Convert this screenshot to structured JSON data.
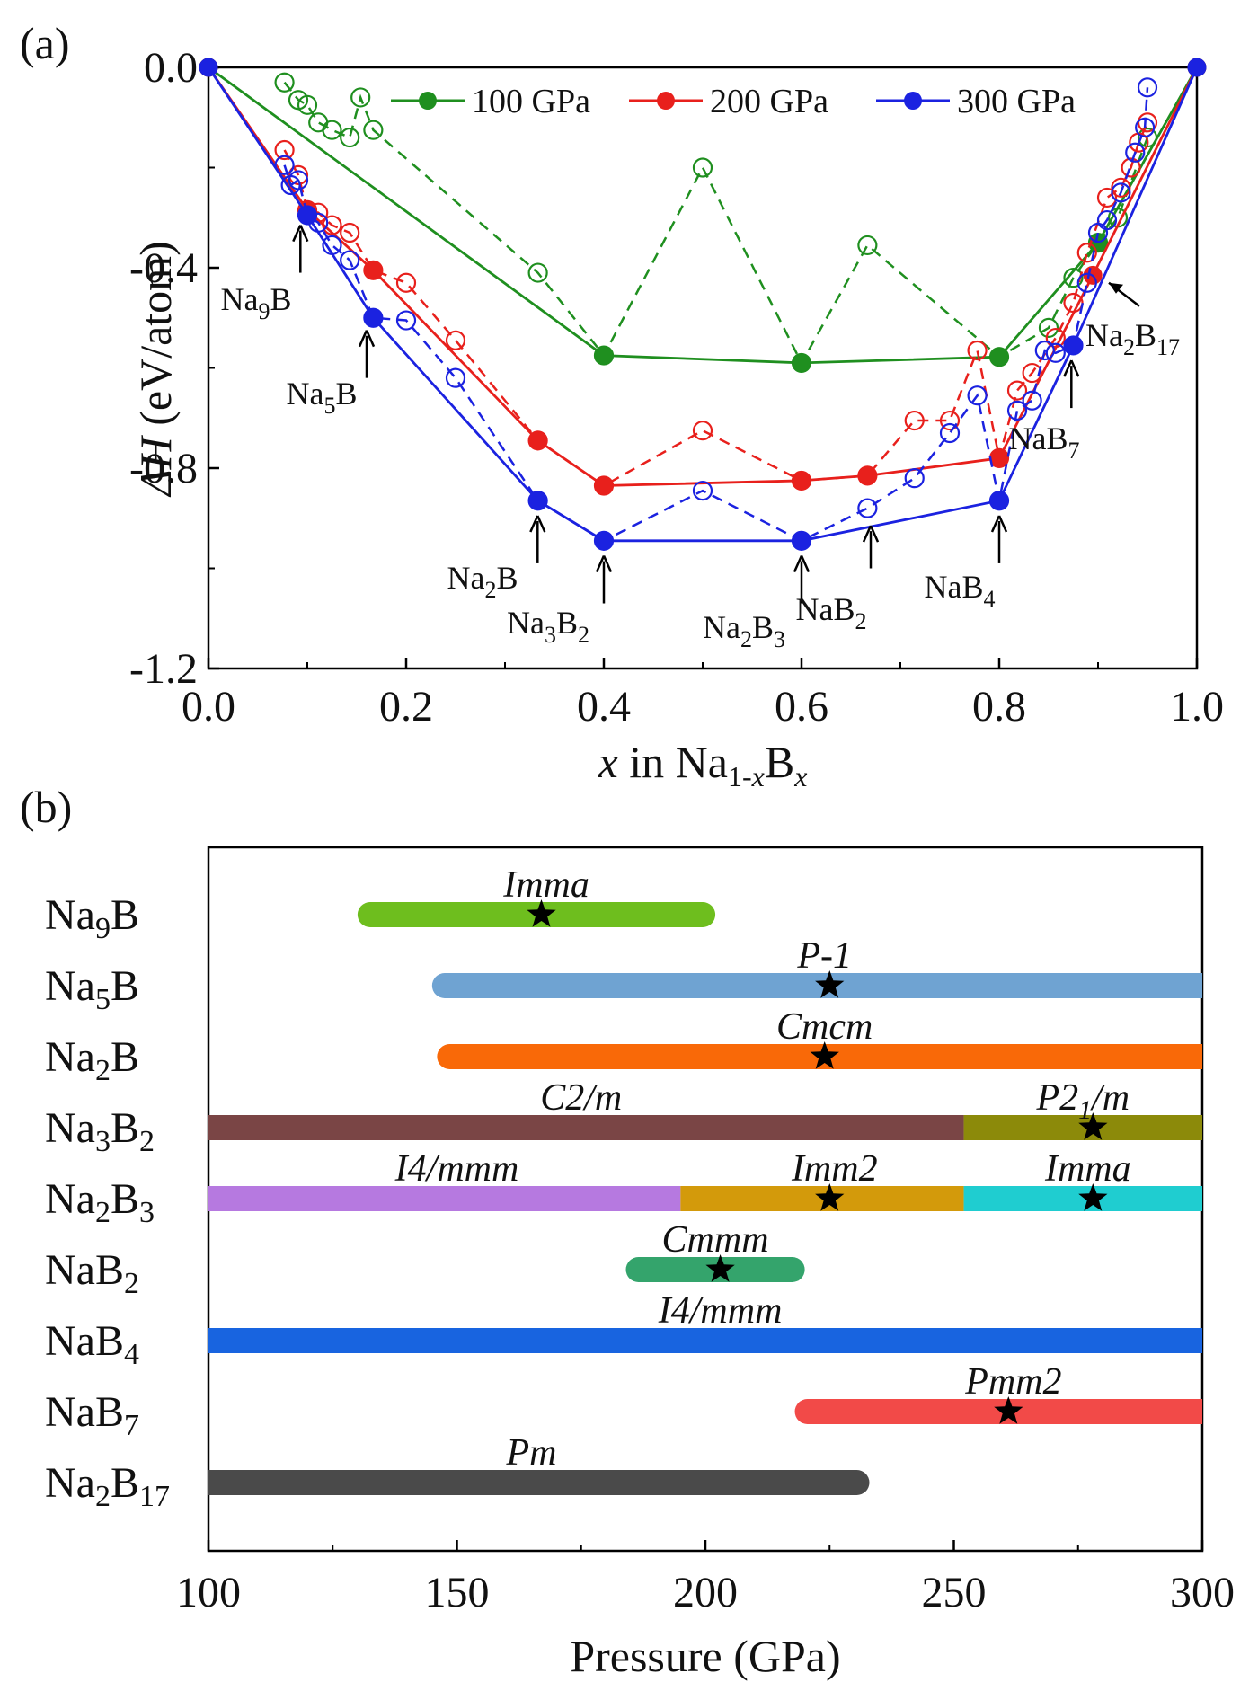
{
  "panel_a": {
    "label": "(a)",
    "chart_data": {
      "type": "line",
      "xlabel": "x in Na1-xBx",
      "ylabel": "ΔH (eV/atom)",
      "xlim": [
        0,
        1
      ],
      "ylim": [
        -1.2,
        0
      ],
      "xticks": [
        "0.0",
        "0.2",
        "0.4",
        "0.6",
        "0.8",
        "1.0"
      ],
      "yticks": [
        "0.0",
        "-0.4",
        "-0.8",
        "-1.2"
      ],
      "legend_position": "top",
      "series": [
        {
          "name": "100 GPa",
          "color": "#1f8f1f",
          "hull": [
            [
              0,
              0
            ],
            [
              0.4,
              -0.575
            ],
            [
              0.6,
              -0.59
            ],
            [
              0.8,
              -0.578
            ],
            [
              0.9,
              -0.35
            ],
            [
              1.0,
              0
            ]
          ],
          "metastable": [
            [
              0.0769,
              -0.03
            ],
            [
              0.0909,
              -0.065
            ],
            [
              0.1,
              -0.075
            ],
            [
              0.1111,
              -0.11
            ],
            [
              0.125,
              -0.125
            ],
            [
              0.1429,
              -0.14
            ],
            [
              0.1538,
              -0.06
            ],
            [
              0.1667,
              -0.125
            ],
            [
              0.3333,
              -0.41
            ],
            [
              0.4,
              -0.575
            ],
            [
              0.5,
              -0.2
            ],
            [
              0.6,
              -0.59
            ],
            [
              0.6667,
              -0.355
            ],
            [
              0.8,
              -0.578
            ],
            [
              0.85,
              -0.52
            ],
            [
              0.875,
              -0.42
            ],
            [
              0.9,
              -0.35
            ],
            [
              0.92,
              -0.3
            ],
            [
              0.95,
              -0.14
            ]
          ]
        },
        {
          "name": "200 GPa",
          "color": "#e8201c",
          "hull": [
            [
              0,
              0
            ],
            [
              0.1,
              -0.285
            ],
            [
              0.1667,
              -0.405
            ],
            [
              0.3333,
              -0.745
            ],
            [
              0.4,
              -0.835
            ],
            [
              0.6,
              -0.825
            ],
            [
              0.6667,
              -0.815
            ],
            [
              0.8,
              -0.78
            ],
            [
              0.8947,
              -0.415
            ],
            [
              1.0,
              0
            ]
          ],
          "metastable": [
            [
              0.0769,
              -0.165
            ],
            [
              0.0909,
              -0.215
            ],
            [
              0.1,
              -0.285
            ],
            [
              0.1111,
              -0.29
            ],
            [
              0.125,
              -0.315
            ],
            [
              0.1429,
              -0.33
            ],
            [
              0.1667,
              -0.405
            ],
            [
              0.2,
              -0.43
            ],
            [
              0.25,
              -0.545
            ],
            [
              0.3333,
              -0.745
            ],
            [
              0.4,
              -0.835
            ],
            [
              0.5,
              -0.725
            ],
            [
              0.6,
              -0.825
            ],
            [
              0.6667,
              -0.815
            ],
            [
              0.7143,
              -0.705
            ],
            [
              0.75,
              -0.705
            ],
            [
              0.7778,
              -0.565
            ],
            [
              0.8,
              -0.78
            ],
            [
              0.8182,
              -0.645
            ],
            [
              0.8333,
              -0.61
            ],
            [
              0.8571,
              -0.54
            ],
            [
              0.875,
              -0.47
            ],
            [
              0.8889,
              -0.37
            ],
            [
              0.9091,
              -0.26
            ],
            [
              0.9231,
              -0.24
            ],
            [
              0.9333,
              -0.2
            ],
            [
              0.9412,
              -0.15
            ],
            [
              0.95,
              -0.11
            ]
          ]
        },
        {
          "name": "300 GPa",
          "color": "#1b22e0",
          "hull": [
            [
              0,
              0
            ],
            [
              0.1,
              -0.295
            ],
            [
              0.1667,
              -0.5
            ],
            [
              0.3333,
              -0.865
            ],
            [
              0.4,
              -0.945
            ],
            [
              0.6,
              -0.945
            ],
            [
              0.8,
              -0.865
            ],
            [
              0.875,
              -0.555
            ],
            [
              1.0,
              0
            ]
          ],
          "metastable": [
            [
              0.0769,
              -0.195
            ],
            [
              0.0833,
              -0.235
            ],
            [
              0.0909,
              -0.225
            ],
            [
              0.1,
              -0.295
            ],
            [
              0.1111,
              -0.31
            ],
            [
              0.125,
              -0.355
            ],
            [
              0.1429,
              -0.385
            ],
            [
              0.1667,
              -0.5
            ],
            [
              0.2,
              -0.505
            ],
            [
              0.25,
              -0.62
            ],
            [
              0.3333,
              -0.865
            ],
            [
              0.4,
              -0.945
            ],
            [
              0.5,
              -0.845
            ],
            [
              0.6,
              -0.945
            ],
            [
              0.6667,
              -0.88
            ],
            [
              0.7143,
              -0.82
            ],
            [
              0.75,
              -0.73
            ],
            [
              0.7778,
              -0.655
            ],
            [
              0.8,
              -0.865
            ],
            [
              0.8182,
              -0.685
            ],
            [
              0.8333,
              -0.665
            ],
            [
              0.8462,
              -0.565
            ],
            [
              0.8571,
              -0.57
            ],
            [
              0.875,
              -0.555
            ],
            [
              0.8889,
              -0.43
            ],
            [
              0.9,
              -0.33
            ],
            [
              0.9091,
              -0.305
            ],
            [
              0.9231,
              -0.25
            ],
            [
              0.9375,
              -0.17
            ],
            [
              0.9474,
              -0.12
            ],
            [
              0.95,
              -0.04
            ]
          ]
        }
      ],
      "annotations": [
        {
          "label": "Na9B",
          "x": 0.1,
          "y": -0.285
        },
        {
          "label": "Na5B",
          "x": 0.1667,
          "y": -0.5
        },
        {
          "label": "Na2B",
          "x": 0.3333,
          "y": -0.865
        },
        {
          "label": "Na3B2",
          "x": 0.4,
          "y": -0.945
        },
        {
          "label": "Na2B3",
          "x": 0.6,
          "y": -0.945
        },
        {
          "label": "NaB2",
          "x": 0.6667,
          "y": -0.88
        },
        {
          "label": "NaB4",
          "x": 0.8,
          "y": -0.865
        },
        {
          "label": "NaB7",
          "x": 0.875,
          "y": -0.555
        },
        {
          "label": "Na2B17",
          "x": 0.8947,
          "y": -0.415
        }
      ]
    }
  },
  "panel_b": {
    "label": "(b)",
    "chart_data": {
      "type": "bar",
      "orientation": "horizontal",
      "xlabel": "Pressure (GPa)",
      "xlim": [
        100,
        300
      ],
      "xticks": [
        "100",
        "150",
        "200",
        "250",
        "300"
      ],
      "categories": [
        "Na9B",
        "Na5B",
        "Na2B",
        "Na3B2",
        "Na2B3",
        "NaB2",
        "NaB4",
        "NaB7",
        "Na2B17"
      ],
      "phases": [
        {
          "compound": "Na9B",
          "phase": "Imma",
          "start": 130,
          "end": 202,
          "color": "#6ebe1e",
          "star": 167
        },
        {
          "compound": "Na5B",
          "phase": "P-1",
          "start": 145,
          "end": 300,
          "color": "#6fa3d2",
          "star": 225
        },
        {
          "compound": "Na2B",
          "phase": "Cmcm",
          "start": 146,
          "end": 300,
          "color": "#f96908",
          "star": 224
        },
        {
          "compound": "Na3B2",
          "phase": "C2/m",
          "start": 100,
          "end": 252,
          "color": "#7a4545",
          "star": null
        },
        {
          "compound": "Na3B2",
          "phase": "P21/m",
          "start": 252,
          "end": 300,
          "color": "#8c8a0a",
          "star": 278
        },
        {
          "compound": "Na2B3",
          "phase": "I4/mmm",
          "start": 100,
          "end": 195,
          "color": "#b679e0",
          "star": null
        },
        {
          "compound": "Na2B3",
          "phase": "Imm2",
          "start": 195,
          "end": 252,
          "color": "#d39a0b",
          "star": 225
        },
        {
          "compound": "Na2B3",
          "phase": "Imma",
          "start": 252,
          "end": 300,
          "color": "#1fcdd0",
          "star": 278
        },
        {
          "compound": "NaB2",
          "phase": "Cmmm",
          "start": 184,
          "end": 220,
          "color": "#34a46c",
          "star": 203
        },
        {
          "compound": "NaB4",
          "phase": "I4/mmm",
          "start": 100,
          "end": 300,
          "color": "#1864e0",
          "star": null
        },
        {
          "compound": "NaB7",
          "phase": "Pmm2",
          "start": 218,
          "end": 300,
          "color": "#f24a48",
          "star": 261
        },
        {
          "compound": "Na2B17",
          "phase": "Pm",
          "start": 100,
          "end": 233,
          "color": "#4a4a4a",
          "star": null
        }
      ]
    }
  }
}
